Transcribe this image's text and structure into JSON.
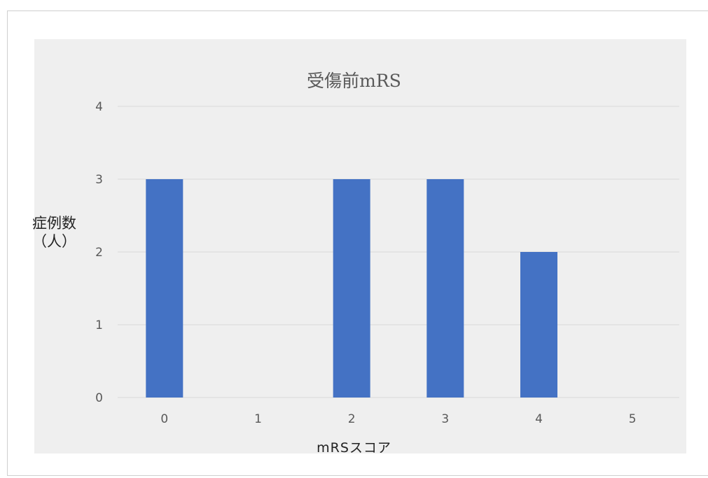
{
  "chart_data": {
    "type": "bar",
    "title": "受傷前mRS",
    "xlabel": "mRSスコア",
    "ylabel": "症例数\n（人）",
    "categories": [
      "0",
      "1",
      "2",
      "3",
      "4",
      "5"
    ],
    "values": [
      3,
      0,
      3,
      3,
      2,
      0
    ],
    "ylim": [
      0,
      4
    ],
    "yticks": [
      0,
      1,
      2,
      3,
      4
    ],
    "grid": true,
    "legend": "none",
    "bar_color": "#4472c4",
    "background_color": "#efefef",
    "gridline_color": "#d9d9d9"
  }
}
